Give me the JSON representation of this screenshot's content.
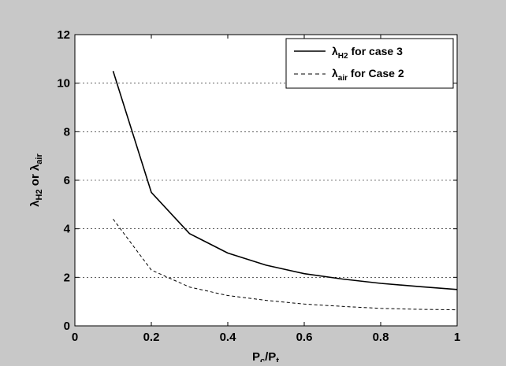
{
  "chart_data": {
    "type": "line",
    "xlabel": "P_c/P_t",
    "ylabel": "λ_H2 or λ_air",
    "xlim": [
      0,
      1
    ],
    "ylim": [
      0,
      12
    ],
    "xticks": [
      0,
      0.2,
      0.4,
      0.6,
      0.8,
      1
    ],
    "yticks": [
      0,
      2,
      4,
      6,
      8,
      10,
      12
    ],
    "xtick_labels": [
      "0",
      "0.2",
      "0.4",
      "0.6",
      "0.8",
      "1"
    ],
    "ytick_labels": [
      "0",
      "2",
      "4",
      "6",
      "8",
      "10",
      "12"
    ],
    "grid": "horizontal-dashed",
    "legend_position": "top-right",
    "series": [
      {
        "name": "λH2 for case 3",
        "legend_symbol": "λ",
        "legend_subscript": "H2",
        "legend_rest": " for case 3",
        "line_style": "solid",
        "color": "#000000",
        "x": [
          0.1,
          0.2,
          0.3,
          0.4,
          0.5,
          0.6,
          0.7,
          0.8,
          0.9,
          1.0
        ],
        "y": [
          10.5,
          5.5,
          3.8,
          3.0,
          2.5,
          2.15,
          1.93,
          1.75,
          1.62,
          1.5
        ]
      },
      {
        "name": "λair for Case 2",
        "legend_symbol": "λ",
        "legend_subscript": "air",
        "legend_rest": " for Case 2",
        "line_style": "dashed",
        "color": "#000000",
        "x": [
          0.1,
          0.2,
          0.3,
          0.4,
          0.5,
          0.6,
          0.7,
          0.8,
          0.9,
          1.0
        ],
        "y": [
          4.4,
          2.3,
          1.6,
          1.25,
          1.05,
          0.9,
          0.8,
          0.72,
          0.68,
          0.66
        ]
      }
    ]
  },
  "labels": {
    "x_main": "P",
    "x_sub1": "c",
    "x_slash": "/P",
    "x_sub2": "t",
    "y_sym1": "λ",
    "y_sub1": "H2",
    "y_or": " or  ",
    "y_sym2": "λ",
    "y_sub2": "air"
  }
}
